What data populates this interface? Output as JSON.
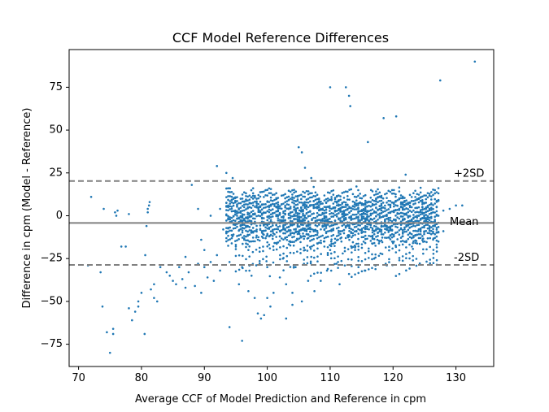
{
  "chart_data": {
    "type": "scatter",
    "title": "CCF Model Reference Differences",
    "xlabel": "Average CCF of Model Prediction and Reference in cpm",
    "ylabel": "Difference in cpm (Model - Reference)",
    "xlim": [
      68.5,
      136
    ],
    "ylim": [
      -88,
      97
    ],
    "xticks": [
      70,
      80,
      90,
      100,
      110,
      120,
      130
    ],
    "yticks": [
      -75,
      -50,
      -25,
      0,
      25,
      50,
      75
    ],
    "xtick_labels": [
      "70",
      "80",
      "90",
      "100",
      "110",
      "120",
      "130"
    ],
    "ytick_labels": [
      "−75",
      "−50",
      "−25",
      "0",
      "25",
      "50",
      "75"
    ],
    "grid": false,
    "point_color": "#1f77b4",
    "reference_lines": [
      {
        "name": "mean",
        "label": "Mean",
        "y": -4.2,
        "style": "solid",
        "color": "#808080"
      },
      {
        "name": "upper",
        "label": "+2SD",
        "y": 20.3,
        "style": "dashed",
        "color": "#808080"
      },
      {
        "name": "lower",
        "label": "-2SD",
        "y": -28.7,
        "style": "dashed",
        "color": "#808080"
      }
    ],
    "series": [
      {
        "points": [
          [
            71.5,
            -29
          ],
          [
            72,
            11
          ],
          [
            73.5,
            -33
          ],
          [
            73.8,
            -53
          ],
          [
            74,
            4
          ],
          [
            74.5,
            -68
          ],
          [
            75,
            -80
          ],
          [
            75.5,
            -69
          ],
          [
            75.5,
            -66
          ],
          [
            75.8,
            2
          ],
          [
            76,
            0
          ],
          [
            76.2,
            3
          ],
          [
            76.8,
            -18
          ],
          [
            77.5,
            -18
          ],
          [
            78,
            1
          ],
          [
            78,
            -54
          ],
          [
            78.5,
            -61
          ],
          [
            79,
            -56
          ],
          [
            79.5,
            -50
          ],
          [
            79.5,
            -53
          ],
          [
            80,
            -45
          ],
          [
            80.5,
            -69
          ],
          [
            80.6,
            -23
          ],
          [
            80.8,
            -6
          ],
          [
            81,
            2
          ],
          [
            81,
            4
          ],
          [
            81.2,
            6
          ],
          [
            81.3,
            8
          ],
          [
            81.5,
            -43
          ],
          [
            82,
            -40
          ],
          [
            82,
            -48
          ],
          [
            82.5,
            -50
          ],
          [
            83,
            -30
          ],
          [
            84,
            -33
          ],
          [
            84.5,
            -35
          ],
          [
            85,
            -38
          ],
          [
            85.5,
            -40
          ],
          [
            86,
            -30
          ],
          [
            86.5,
            -37
          ],
          [
            87,
            -42
          ],
          [
            87,
            -24
          ],
          [
            87.5,
            -33
          ],
          [
            88,
            18
          ],
          [
            88.5,
            -41
          ],
          [
            89,
            -28
          ],
          [
            89,
            4
          ],
          [
            89.5,
            -45
          ],
          [
            89.5,
            -14
          ],
          [
            90,
            -30
          ],
          [
            90,
            -20
          ],
          [
            90.5,
            -36
          ],
          [
            91,
            -27
          ],
          [
            91,
            0
          ],
          [
            91.5,
            -38
          ],
          [
            92,
            -23
          ],
          [
            92,
            29
          ],
          [
            92.5,
            4
          ],
          [
            92.5,
            -32
          ],
          [
            93,
            -8
          ],
          [
            93.5,
            -10
          ],
          [
            93.5,
            25
          ],
          [
            94,
            -27
          ],
          [
            94,
            -65
          ],
          [
            94.5,
            -12
          ],
          [
            94.5,
            22
          ],
          [
            95,
            -18
          ],
          [
            95.5,
            -40
          ],
          [
            96,
            -73
          ],
          [
            96,
            -30
          ],
          [
            96.5,
            -3
          ],
          [
            97,
            -44
          ],
          [
            97,
            -20
          ],
          [
            97.5,
            -35
          ],
          [
            98,
            -48
          ],
          [
            98.5,
            -57
          ],
          [
            98.5,
            -14
          ],
          [
            99,
            -60
          ],
          [
            99.5,
            -58
          ],
          [
            100,
            -48
          ],
          [
            100,
            -30
          ],
          [
            100.5,
            -53
          ],
          [
            101,
            -45
          ],
          [
            101,
            -20
          ],
          [
            101.5,
            10
          ],
          [
            102,
            -12
          ],
          [
            102,
            -36
          ],
          [
            102.5,
            -25
          ],
          [
            103,
            -60
          ],
          [
            103,
            -40
          ],
          [
            103.5,
            -15
          ],
          [
            104,
            -52
          ],
          [
            104,
            -45
          ],
          [
            104.5,
            -30
          ],
          [
            105,
            40
          ],
          [
            105,
            -10
          ],
          [
            105.5,
            37
          ],
          [
            105.5,
            -50
          ],
          [
            106,
            -20
          ],
          [
            106,
            28
          ],
          [
            106.5,
            -38
          ],
          [
            107,
            22
          ],
          [
            107,
            -24
          ],
          [
            107.5,
            -44
          ],
          [
            108,
            -10
          ],
          [
            108.5,
            -38
          ],
          [
            109,
            -15
          ],
          [
            109.5,
            -32
          ],
          [
            110,
            75
          ],
          [
            110,
            -20
          ],
          [
            111,
            -28
          ],
          [
            111.5,
            -40
          ],
          [
            112,
            -22
          ],
          [
            112.5,
            75
          ],
          [
            113,
            70
          ],
          [
            113,
            -34
          ],
          [
            113.2,
            64
          ],
          [
            114,
            -18
          ],
          [
            114.5,
            -30
          ],
          [
            115,
            -10
          ],
          [
            115.5,
            -32
          ],
          [
            116,
            43
          ],
          [
            116.5,
            15
          ],
          [
            117,
            -25
          ],
          [
            117.5,
            -14
          ],
          [
            118,
            -22
          ],
          [
            118.5,
            57
          ],
          [
            119,
            -8
          ],
          [
            119,
            -29
          ],
          [
            120,
            -16
          ],
          [
            120.5,
            58
          ],
          [
            121,
            -26
          ],
          [
            121.5,
            -12
          ],
          [
            122,
            24
          ],
          [
            123,
            -18
          ],
          [
            124,
            -9
          ],
          [
            125,
            -15
          ],
          [
            126,
            -4
          ],
          [
            127.5,
            79
          ],
          [
            128,
            -9
          ],
          [
            128,
            3
          ],
          [
            129,
            4
          ],
          [
            130,
            6
          ],
          [
            131,
            6
          ],
          [
            133,
            90
          ]
        ]
      }
    ],
    "bands": [
      {
        "x0": 93.5,
        "x1": 127.5,
        "spread_low": -12,
        "spread_high": 12,
        "rows": 22,
        "cols": 120
      },
      {
        "x0": 95,
        "x1": 127.5,
        "spread_low": -30,
        "spread_high": -10,
        "rows": 6,
        "cols": 60
      }
    ]
  }
}
